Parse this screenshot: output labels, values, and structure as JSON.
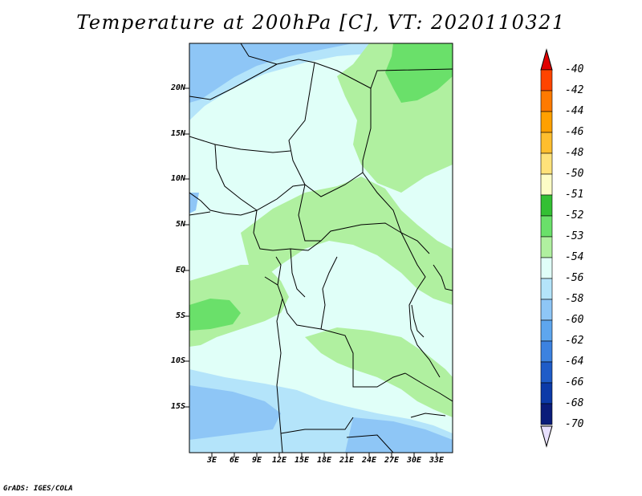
{
  "title": "Temperature at 200hPa [C], VT: 2020110321",
  "footer": "GrADS: IGES/COLA",
  "lat_labels": [
    "20N",
    "15N",
    "10N",
    "5N",
    "EQ",
    "5S",
    "10S",
    "15S"
  ],
  "lon_labels": [
    "3E",
    "6E",
    "9E",
    "12E",
    "15E",
    "18E",
    "21E",
    "24E",
    "27E",
    "30E",
    "33E"
  ],
  "colorbar": {
    "labels": [
      "-40",
      "-42",
      "-44",
      "-46",
      "-48",
      "-50",
      "-51",
      "-52",
      "-53",
      "-54",
      "-56",
      "-58",
      "-60",
      "-62",
      "-64",
      "-66",
      "-68",
      "-70"
    ],
    "colors": [
      "#ff1c00",
      "#ff4400",
      "#ff7a00",
      "#ffa000",
      "#ffbe2e",
      "#ffe27a",
      "#fdfdc6",
      "#33c033",
      "#6ae06a",
      "#b0f0a0",
      "#e0fff8",
      "#b4e4fa",
      "#8ec6f6",
      "#5ea6ee",
      "#3c82e0",
      "#1f5cc8",
      "#0c3aa8",
      "#0a1c7a"
    ],
    "top_arrow_color": "#e00000",
    "bottom_arrow_color": "#e8e0ff"
  },
  "map_colors": {
    "background": "#e0fff8",
    "green_light": "#b0f0a0",
    "green_mid": "#6ae06a",
    "blue_light": "#b4e4fa",
    "blue_mid": "#8ec6f6",
    "blue_dark": "#5ea6ee"
  }
}
